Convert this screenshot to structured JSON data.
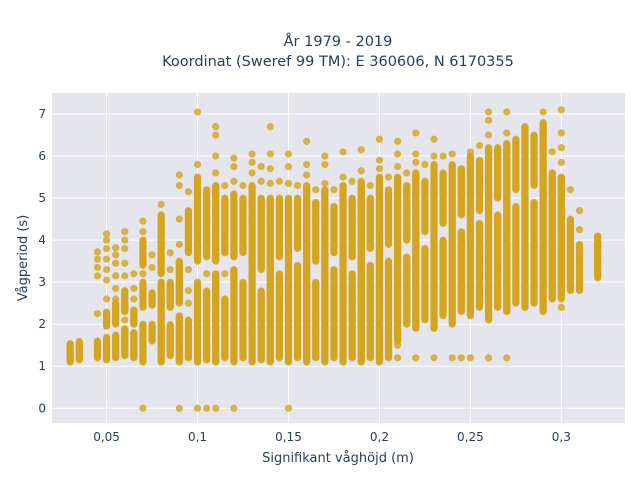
{
  "chart_data": {
    "type": "scatter",
    "title": "År 1979 - 2019",
    "subtitle": "Koordinat (Sweref 99 TM): E 360606, N 6170355",
    "xlabel": "Signifikant våghöjd (m)",
    "ylabel": "Vågperiod (s)",
    "xlim": [
      0.02,
      0.335
    ],
    "ylim": [
      -0.35,
      7.5
    ],
    "x_ticks": [
      0.05,
      0.1,
      0.15,
      0.2,
      0.25,
      0.3
    ],
    "x_tick_labels": [
      "0,05",
      "0,1",
      "0,15",
      "0,2",
      "0,25",
      "0,3"
    ],
    "y_ticks": [
      0,
      1,
      2,
      3,
      4,
      5,
      6,
      7
    ],
    "y_tick_labels": [
      "0",
      "1",
      "2",
      "3",
      "4",
      "5",
      "6",
      "7"
    ],
    "grid": true,
    "background_color": "#e5e5ee",
    "marker_color": "#d4a520",
    "columns": [
      {
        "x": 0.03,
        "ranges": [
          [
            1.1,
            1.55
          ]
        ],
        "outliers": []
      },
      {
        "x": 0.035,
        "ranges": [
          [
            1.15,
            1.6
          ]
        ],
        "outliers": []
      },
      {
        "x": 0.045,
        "ranges": [
          [
            1.2,
            1.6
          ]
        ],
        "outliers": [
          2.25,
          3.15,
          3.35,
          3.55,
          3.72
        ]
      },
      {
        "x": 0.05,
        "ranges": [
          [
            1.15,
            1.7
          ],
          [
            1.95,
            2.3
          ]
        ],
        "outliers": [
          2.6,
          3.05,
          3.3,
          3.55,
          3.8,
          4.0,
          4.15
        ]
      },
      {
        "x": 0.055,
        "ranges": [
          [
            1.2,
            1.75
          ],
          [
            2.0,
            2.5
          ]
        ],
        "outliers": [
          2.6,
          2.85,
          3.15,
          3.45,
          3.65,
          3.82
        ]
      },
      {
        "x": 0.06,
        "ranges": [
          [
            1.25,
            1.9
          ],
          [
            2.3,
            2.8
          ]
        ],
        "outliers": [
          2.1,
          3.15,
          3.45,
          3.8,
          4.0,
          4.2
        ]
      },
      {
        "x": 0.065,
        "ranges": [
          [
            1.2,
            1.8
          ],
          [
            2.0,
            2.35
          ]
        ],
        "outliers": [
          2.6,
          2.85,
          3.2
        ]
      },
      {
        "x": 0.07,
        "ranges": [
          [
            1.1,
            2.0
          ],
          [
            2.4,
            3.0
          ],
          [
            3.4,
            4.0
          ]
        ],
        "outliers": [
          0.0,
          3.2,
          4.2,
          4.45
        ]
      },
      {
        "x": 0.075,
        "ranges": [
          [
            1.6,
            2.0
          ],
          [
            2.45,
            2.75
          ]
        ],
        "outliers": [
          3.35,
          3.65
        ]
      },
      {
        "x": 0.08,
        "ranges": [
          [
            1.1,
            3.0
          ],
          [
            3.2,
            4.6
          ]
        ],
        "outliers": [
          4.85
        ]
      },
      {
        "x": 0.085,
        "ranges": [
          [
            1.25,
            2.0
          ],
          [
            2.4,
            3.0
          ]
        ],
        "outliers": [
          3.3,
          3.7
        ]
      },
      {
        "x": 0.09,
        "ranges": [
          [
            1.1,
            2.2
          ],
          [
            2.5,
            3.5
          ]
        ],
        "outliers": [
          0.0,
          3.9,
          4.5,
          5.3,
          5.55
        ]
      },
      {
        "x": 0.095,
        "ranges": [
          [
            1.2,
            2.1
          ],
          [
            3.7,
            4.7
          ]
        ],
        "outliers": [
          2.5,
          2.8,
          3.3,
          5.15
        ]
      },
      {
        "x": 0.1,
        "ranges": [
          [
            1.1,
            3.0
          ],
          [
            3.5,
            5.5
          ]
        ],
        "outliers": [
          0.0,
          5.8,
          7.05
        ]
      },
      {
        "x": 0.105,
        "ranges": [
          [
            1.15,
            2.8
          ],
          [
            3.6,
            5.2
          ]
        ],
        "outliers": [
          0.0,
          3.2
        ]
      },
      {
        "x": 0.11,
        "ranges": [
          [
            1.1,
            3.2
          ],
          [
            3.5,
            5.3
          ]
        ],
        "outliers": [
          0.0,
          5.6,
          6.0,
          6.5,
          6.7
        ]
      },
      {
        "x": 0.115,
        "ranges": [
          [
            1.2,
            2.6
          ],
          [
            3.7,
            5.0
          ]
        ],
        "outliers": [
          3.2,
          5.3
        ]
      },
      {
        "x": 0.12,
        "ranges": [
          [
            1.1,
            3.3
          ],
          [
            3.6,
            5.1
          ]
        ],
        "outliers": [
          0.0,
          5.4,
          5.75,
          5.95
        ]
      },
      {
        "x": 0.125,
        "ranges": [
          [
            1.2,
            3.0
          ],
          [
            3.7,
            5.0
          ]
        ],
        "outliers": [
          5.3
        ]
      },
      {
        "x": 0.13,
        "ranges": [
          [
            1.1,
            5.3
          ]
        ],
        "outliers": [
          5.6,
          5.85,
          6.05
        ]
      },
      {
        "x": 0.135,
        "ranges": [
          [
            1.15,
            2.8
          ],
          [
            3.3,
            5.0
          ]
        ],
        "outliers": [
          5.4,
          5.75
        ]
      },
      {
        "x": 0.14,
        "ranges": [
          [
            1.1,
            5.0
          ]
        ],
        "outliers": [
          5.35,
          5.7,
          6.05,
          6.7
        ]
      },
      {
        "x": 0.145,
        "ranges": [
          [
            1.2,
            3.2
          ],
          [
            3.6,
            5.0
          ]
        ],
        "outliers": [
          5.4
        ]
      },
      {
        "x": 0.15,
        "ranges": [
          [
            1.1,
            5.0
          ]
        ],
        "outliers": [
          0.0,
          5.35,
          5.75,
          6.05
        ]
      },
      {
        "x": 0.155,
        "ranges": [
          [
            1.2,
            3.4
          ],
          [
            3.8,
            5.0
          ]
        ],
        "outliers": [
          5.3
        ]
      },
      {
        "x": 0.16,
        "ranges": [
          [
            1.1,
            5.3
          ]
        ],
        "outliers": [
          5.55,
          5.8,
          6.35
        ]
      },
      {
        "x": 0.165,
        "ranges": [
          [
            1.2,
            3.0
          ],
          [
            3.5,
            4.9
          ]
        ],
        "outliers": [
          5.2
        ]
      },
      {
        "x": 0.17,
        "ranges": [
          [
            1.1,
            5.2
          ]
        ],
        "outliers": [
          5.35,
          5.8,
          6.0
        ]
      },
      {
        "x": 0.175,
        "ranges": [
          [
            1.2,
            3.3
          ],
          [
            3.7,
            4.8
          ]
        ],
        "outliers": [
          5.2
        ]
      },
      {
        "x": 0.18,
        "ranges": [
          [
            1.1,
            5.3
          ]
        ],
        "outliers": [
          5.5,
          6.1
        ]
      },
      {
        "x": 0.185,
        "ranges": [
          [
            1.2,
            3.2
          ],
          [
            3.6,
            5.0
          ]
        ],
        "outliers": [
          5.4
        ]
      },
      {
        "x": 0.19,
        "ranges": [
          [
            1.1,
            5.4
          ]
        ],
        "outliers": [
          5.65,
          6.15
        ]
      },
      {
        "x": 0.195,
        "ranges": [
          [
            1.2,
            3.4
          ],
          [
            3.8,
            5.0
          ]
        ],
        "outliers": [
          5.3
        ]
      },
      {
        "x": 0.2,
        "ranges": [
          [
            1.1,
            5.5
          ]
        ],
        "outliers": [
          5.7,
          5.9,
          6.4
        ]
      },
      {
        "x": 0.205,
        "ranges": [
          [
            1.2,
            3.5
          ],
          [
            3.9,
            5.2
          ]
        ],
        "outliers": [
          5.5
        ]
      },
      {
        "x": 0.21,
        "ranges": [
          [
            1.6,
            5.5
          ]
        ],
        "outliers": [
          1.2,
          1.5,
          5.75,
          6.05,
          6.35
        ]
      },
      {
        "x": 0.215,
        "ranges": [
          [
            2.0,
            3.6
          ],
          [
            4.0,
            5.3
          ]
        ],
        "outliers": [
          5.6
        ]
      },
      {
        "x": 0.22,
        "ranges": [
          [
            1.9,
            5.6
          ]
        ],
        "outliers": [
          1.2,
          5.85,
          6.05,
          6.55
        ]
      },
      {
        "x": 0.225,
        "ranges": [
          [
            2.1,
            3.8
          ],
          [
            4.2,
            5.4
          ]
        ],
        "outliers": [
          5.8
        ]
      },
      {
        "x": 0.23,
        "ranges": [
          [
            1.9,
            5.8
          ]
        ],
        "outliers": [
          1.2,
          6.0,
          6.4
        ]
      },
      {
        "x": 0.235,
        "ranges": [
          [
            2.2,
            4.0
          ],
          [
            4.4,
            5.6
          ]
        ],
        "outliers": [
          6.0
        ]
      },
      {
        "x": 0.24,
        "ranges": [
          [
            2.0,
            5.8
          ]
        ],
        "outliers": [
          1.2,
          6.05
        ]
      },
      {
        "x": 0.245,
        "ranges": [
          [
            2.3,
            4.2
          ],
          [
            4.6,
            5.7
          ]
        ],
        "outliers": [
          1.2
        ]
      },
      {
        "x": 0.25,
        "ranges": [
          [
            2.2,
            6.0
          ]
        ],
        "outliers": [
          1.2,
          6.1
        ]
      },
      {
        "x": 0.255,
        "ranges": [
          [
            2.4,
            4.4
          ],
          [
            4.7,
            5.9
          ]
        ],
        "outliers": [
          6.25
        ]
      },
      {
        "x": 0.26,
        "ranges": [
          [
            2.1,
            6.2
          ]
        ],
        "outliers": [
          1.2,
          6.5,
          6.85,
          7.05
        ]
      },
      {
        "x": 0.265,
        "ranges": [
          [
            2.4,
            4.6
          ],
          [
            5.0,
            6.2
          ]
        ],
        "outliers": []
      },
      {
        "x": 0.27,
        "ranges": [
          [
            2.3,
            6.3
          ]
        ],
        "outliers": [
          1.2,
          6.55,
          7.05
        ]
      },
      {
        "x": 0.275,
        "ranges": [
          [
            2.5,
            4.8
          ],
          [
            5.2,
            6.4
          ]
        ],
        "outliers": []
      },
      {
        "x": 0.28,
        "ranges": [
          [
            2.4,
            6.7
          ]
        ],
        "outliers": []
      },
      {
        "x": 0.285,
        "ranges": [
          [
            2.5,
            4.9
          ],
          [
            5.3,
            6.5
          ]
        ],
        "outliers": []
      },
      {
        "x": 0.29,
        "ranges": [
          [
            2.3,
            6.8
          ]
        ],
        "outliers": [
          7.05
        ]
      },
      {
        "x": 0.295,
        "ranges": [
          [
            2.6,
            5.6
          ]
        ],
        "outliers": [
          6.1
        ]
      },
      {
        "x": 0.3,
        "ranges": [
          [
            2.6,
            5.5
          ]
        ],
        "outliers": [
          2.4,
          5.85,
          6.2,
          6.55,
          7.1
        ]
      },
      {
        "x": 0.305,
        "ranges": [
          [
            2.8,
            4.5
          ]
        ],
        "outliers": [
          5.2
        ]
      },
      {
        "x": 0.31,
        "ranges": [
          [
            2.8,
            3.9
          ]
        ],
        "outliers": [
          4.25,
          4.7
        ]
      },
      {
        "x": 0.32,
        "ranges": [
          [
            3.1,
            4.1
          ]
        ],
        "outliers": []
      }
    ]
  }
}
